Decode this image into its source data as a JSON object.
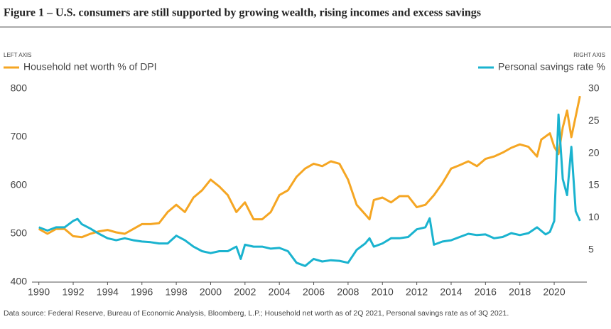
{
  "chart_data": {
    "type": "line",
    "title": "Figure 1 – U.S. consumers are still supported by growing wealth, rising incomes and excess savings",
    "left_axis_label": "LEFT  AXIS",
    "right_axis_label": "RIGHT  AXIS",
    "source": "Data source: Federal Reserve, Bureau of Economic Analysis, Bloomberg, L.P.; Household net worth as of 2Q 2021, Personal savings rate as of 3Q 2021.",
    "xlim": [
      1989.6,
      2021.9
    ],
    "xticks": [
      1990,
      1992,
      1994,
      1996,
      1998,
      2000,
      2002,
      2004,
      2006,
      2008,
      2010,
      2012,
      2014,
      2016,
      2018,
      2020
    ],
    "ylim": [
      400,
      800
    ],
    "yticks": [
      400,
      500,
      600,
      700,
      800
    ],
    "y2lim": [
      0,
      30
    ],
    "y2ticks": [
      5,
      10,
      15,
      20,
      25,
      30
    ],
    "series": [
      {
        "name": "Household net worth % of DPI",
        "color": "#f5a623",
        "axis": "y",
        "x": [
          1990,
          1990.5,
          1991,
          1991.5,
          1992,
          1992.5,
          1993,
          1993.5,
          1994,
          1994.5,
          1995,
          1995.5,
          1996,
          1996.5,
          1997,
          1997.5,
          1998,
          1998.5,
          1999,
          1999.5,
          2000,
          2000.5,
          2001,
          2001.5,
          2002,
          2002.5,
          2003,
          2003.5,
          2004,
          2004.5,
          2005,
          2005.5,
          2006,
          2006.5,
          2007,
          2007.5,
          2008,
          2008.5,
          2009,
          2009.25,
          2009.5,
          2010,
          2010.5,
          2011,
          2011.5,
          2012,
          2012.5,
          2013,
          2013.5,
          2014,
          2014.5,
          2015,
          2015.5,
          2016,
          2016.5,
          2017,
          2017.5,
          2018,
          2018.5,
          2019,
          2019.25,
          2019.75,
          2020,
          2020.25,
          2020.5,
          2020.75,
          2021,
          2021.5
        ],
        "values": [
          510,
          500,
          510,
          510,
          495,
          493,
          500,
          505,
          508,
          503,
          500,
          510,
          520,
          520,
          522,
          545,
          560,
          545,
          575,
          590,
          612,
          598,
          580,
          545,
          565,
          530,
          530,
          545,
          580,
          590,
          618,
          635,
          645,
          640,
          650,
          645,
          612,
          560,
          540,
          530,
          570,
          575,
          565,
          578,
          578,
          555,
          560,
          580,
          605,
          635,
          642,
          650,
          640,
          655,
          660,
          668,
          678,
          685,
          680,
          660,
          695,
          708,
          680,
          665,
          720,
          755,
          700,
          785
        ]
      },
      {
        "name": "Personal savings rate %",
        "color": "#1ab3cf",
        "axis": "y2",
        "x": [
          1990,
          1990.5,
          1991,
          1991.5,
          1992,
          1992.25,
          1992.5,
          1993,
          1993.5,
          1994,
          1994.5,
          1995,
          1995.5,
          1996,
          1996.5,
          1997,
          1997.5,
          1998,
          1998.5,
          1999,
          1999.5,
          2000,
          2000.5,
          2001,
          2001.5,
          2001.75,
          2002,
          2002.5,
          2003,
          2003.5,
          2004,
          2004.5,
          2005,
          2005.5,
          2006,
          2006.5,
          2007,
          2007.5,
          2008,
          2008.5,
          2009,
          2009.25,
          2009.5,
          2010,
          2010.5,
          2011,
          2011.5,
          2012,
          2012.5,
          2012.75,
          2013,
          2013.5,
          2014,
          2014.5,
          2015,
          2015.5,
          2016,
          2016.5,
          2017,
          2017.5,
          2018,
          2018.5,
          2019,
          2019.5,
          2019.75,
          2020,
          2020.25,
          2020.5,
          2020.75,
          2021,
          2021.25,
          2021.5
        ],
        "values": [
          8.5,
          8,
          8.5,
          8.5,
          9.5,
          9.8,
          9,
          8.3,
          7.5,
          6.8,
          6.5,
          6.8,
          6.5,
          6.3,
          6.2,
          6,
          6,
          7.2,
          6.5,
          5.5,
          4.8,
          4.5,
          4.8,
          4.8,
          5.5,
          3.6,
          5.8,
          5.5,
          5.5,
          5.2,
          5.3,
          4.8,
          3,
          2.5,
          3.6,
          3.2,
          3.4,
          3.3,
          3,
          5,
          6,
          6.8,
          5.5,
          6,
          6.8,
          6.8,
          7,
          8.2,
          8.5,
          9.9,
          5.8,
          6.3,
          6.5,
          7,
          7.5,
          7.3,
          7.4,
          6.8,
          7,
          7.6,
          7.3,
          7.6,
          8.5,
          7.4,
          7.8,
          9.5,
          26,
          16,
          13.5,
          21,
          11,
          9.5
        ]
      }
    ]
  }
}
